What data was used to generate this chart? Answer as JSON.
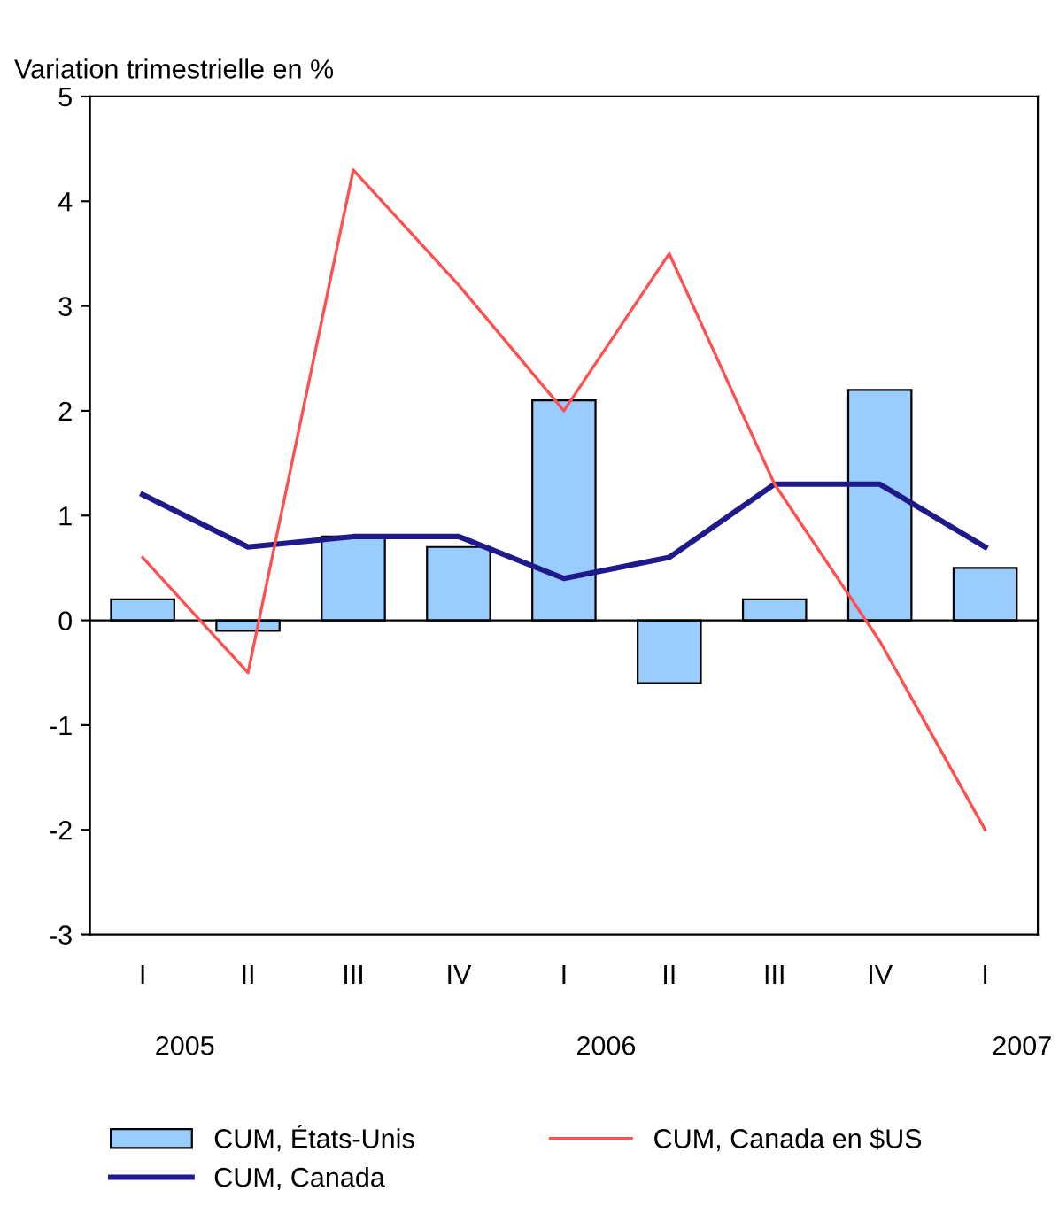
{
  "chart_data": {
    "type": "bar",
    "ylabel": "Variation trimestrielle en %",
    "categories": [
      "I",
      "II",
      "III",
      "IV",
      "I",
      "II",
      "III",
      "IV",
      "I"
    ],
    "series": [
      {
        "name": "CUM, États-Unis",
        "color": "#99ccff",
        "values": [
          0.2,
          -0.1,
          0.8,
          0.7,
          2.1,
          -0.6,
          0.2,
          2.2,
          0.5
        ]
      },
      {
        "name": "CUM, Canada",
        "type": "line",
        "color": "#1f1a8c",
        "values": [
          1.2,
          0.7,
          0.8,
          0.8,
          0.4,
          0.6,
          1.3,
          1.3,
          0.7
        ]
      },
      {
        "name": "CUM, Canada en $US",
        "type": "line",
        "color": "#ff5050",
        "values": [
          0.6,
          -0.5,
          4.3,
          3.2,
          2.0,
          3.5,
          1.3,
          -0.2,
          -2.0
        ]
      }
    ],
    "annotations": [
      "2005",
      "2006",
      "2007"
    ],
    "ylim": [
      -3,
      5
    ],
    "yticks": [
      -3,
      -2,
      -1,
      0,
      1,
      2,
      3,
      4,
      5
    ],
    "ref_lines": [
      {
        "axis": "y",
        "value": 0,
        "color": "#000000"
      }
    ],
    "grid": false,
    "legend": "bottom",
    "marker": "none",
    "line_style": "solid"
  }
}
